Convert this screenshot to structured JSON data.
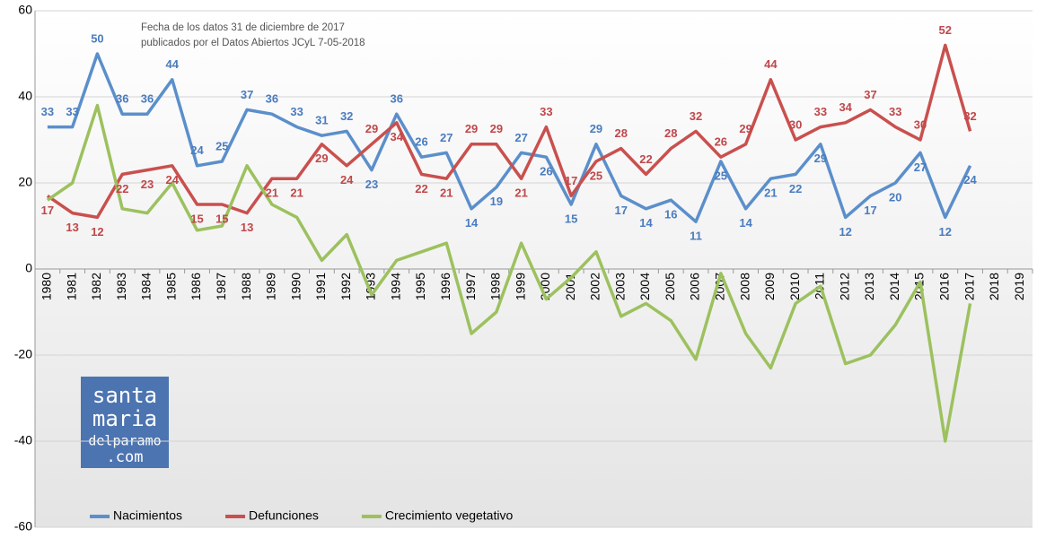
{
  "chart_data": {
    "type": "line",
    "annotation": [
      "Fecha de los datos 31 de diciembre de 2017",
      "publicados por el Datos Abiertos JCyL 7-05-2018"
    ],
    "logo": [
      "santa",
      "maria",
      "delparamo",
      ".com"
    ],
    "categories": [
      "1980",
      "1981",
      "1982",
      "1983",
      "1984",
      "1985",
      "1986",
      "1987",
      "1988",
      "1989",
      "1990",
      "1991",
      "1992",
      "1993",
      "1994",
      "1995",
      "1996",
      "1997",
      "1998",
      "1999",
      "2000",
      "2001",
      "2002",
      "2003",
      "2004",
      "2005",
      "2006",
      "2007",
      "2008",
      "2009",
      "2010",
      "2011",
      "2012",
      "2013",
      "2014",
      "2015",
      "2016",
      "2017",
      "2018",
      "2019"
    ],
    "series": [
      {
        "name": "Nacimientos",
        "color": "#5b8fcb",
        "label_color": "#4a7cbf",
        "show_labels": true,
        "values": [
          33,
          33,
          50,
          36,
          36,
          44,
          24,
          25,
          37,
          36,
          33,
          31,
          32,
          23,
          36,
          26,
          27,
          14,
          19,
          27,
          26,
          15,
          29,
          17,
          14,
          16,
          11,
          25,
          14,
          21,
          22,
          29,
          12,
          17,
          20,
          27,
          12,
          24,
          null,
          null
        ]
      },
      {
        "name": "Defunciones",
        "color": "#c9504e",
        "label_color": "#c0474a",
        "show_labels": true,
        "values": [
          17,
          13,
          12,
          22,
          23,
          24,
          15,
          15,
          13,
          21,
          21,
          29,
          24,
          29,
          34,
          22,
          21,
          29,
          29,
          21,
          33,
          17,
          25,
          28,
          22,
          28,
          32,
          26,
          29,
          44,
          30,
          33,
          34,
          37,
          33,
          30,
          52,
          32,
          null,
          null
        ]
      },
      {
        "name": "Crecimiento vegetativo",
        "color": "#9cc15e",
        "label_color": "#9cc15e",
        "show_labels": false,
        "values": [
          16,
          20,
          38,
          14,
          13,
          20,
          9,
          10,
          24,
          15,
          12,
          2,
          8,
          -6,
          2,
          4,
          6,
          -15,
          -10,
          6,
          -7,
          -2,
          4,
          -11,
          -8,
          -12,
          -21,
          -1,
          -15,
          -23,
          -8,
          -4,
          -22,
          -20,
          -13,
          -3,
          -40,
          -8,
          null,
          null
        ]
      }
    ],
    "ylim": [
      -60,
      60
    ],
    "yticks": [
      -60,
      -40,
      -20,
      0,
      20,
      40,
      60
    ],
    "grid": true,
    "legend": "bottom-left"
  }
}
